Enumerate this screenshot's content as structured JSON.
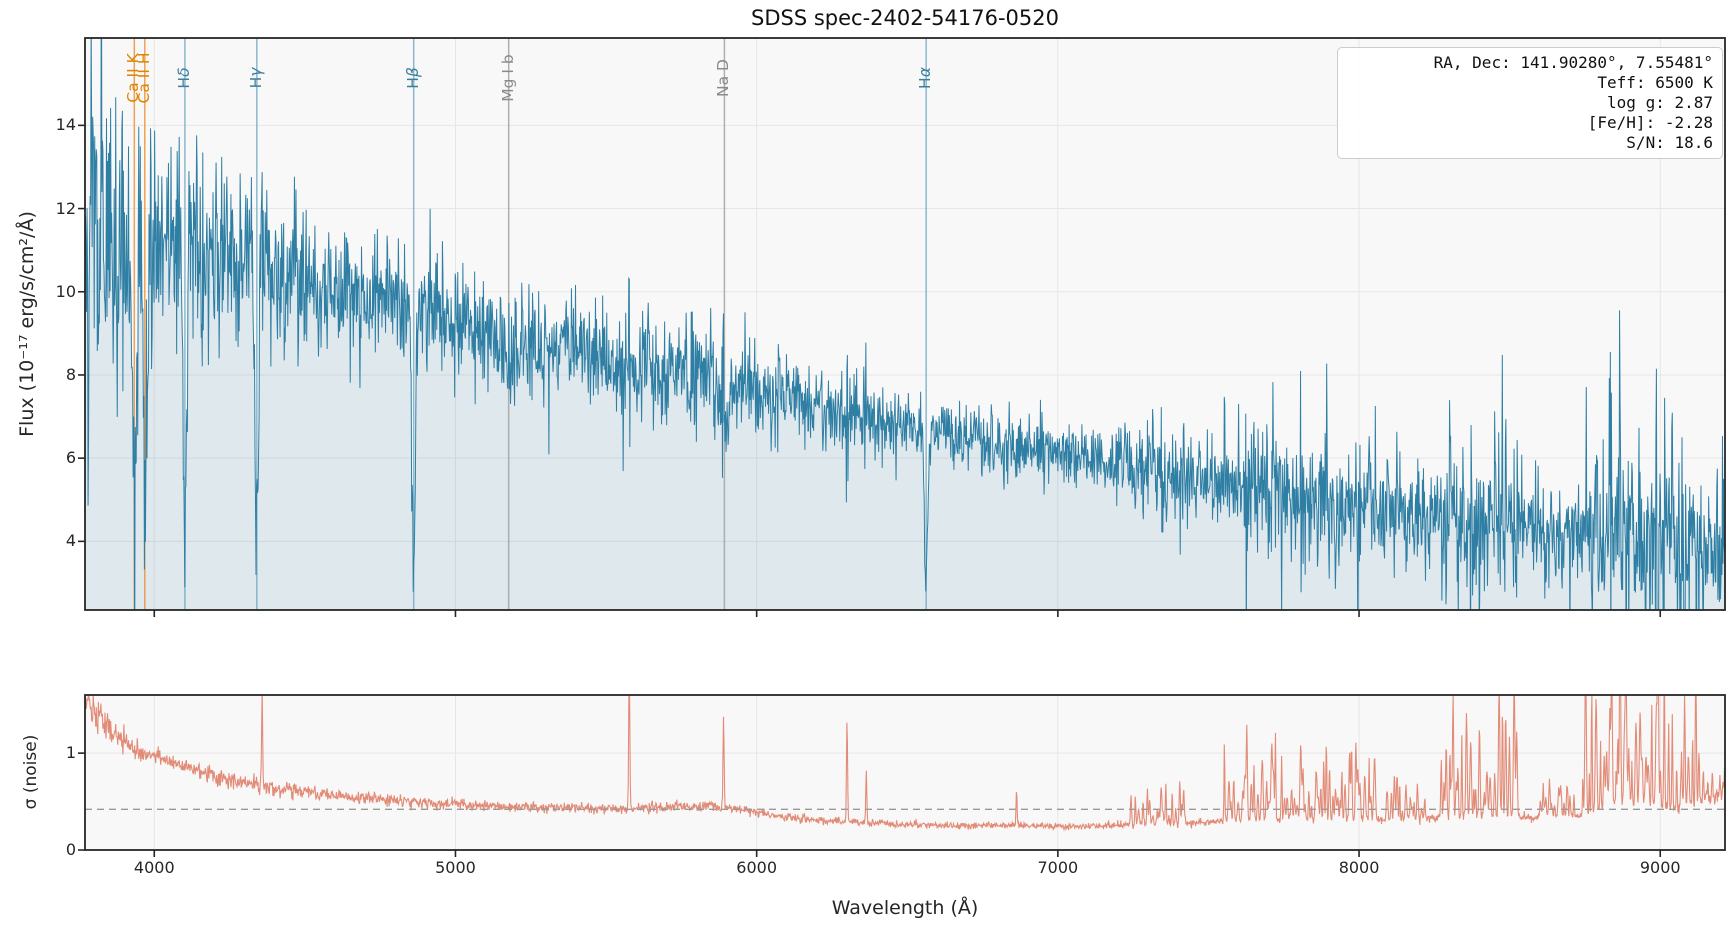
{
  "title": "SDSS spec-2402-54176-0520",
  "info_box": {
    "lines": [
      "RA, Dec: 141.90280°, 7.55481°",
      "Teff: 6500 K",
      "log g: 2.87",
      "[Fe/H]: -2.28",
      "S/N: 18.6"
    ]
  },
  "chart_data": {
    "type": "line",
    "title": "SDSS spec-2402-54176-0520",
    "xlabel": "Wavelength (Å)",
    "x_range": [
      3770,
      9215
    ],
    "x_ticks": [
      4000,
      5000,
      6000,
      7000,
      8000,
      9000
    ],
    "grid": true,
    "flux_panel": {
      "ylabel": "Flux (10⁻¹⁷ erg/s/cm²/Å)",
      "y_range": [
        2.35,
        16.1
      ],
      "y_ticks": [
        4,
        6,
        8,
        10,
        12,
        14
      ],
      "continuum": [
        [
          3770,
          12.0
        ],
        [
          3830,
          11.5
        ],
        [
          3900,
          11.2
        ],
        [
          3970,
          11.3
        ],
        [
          4050,
          11.4
        ],
        [
          4150,
          11.0
        ],
        [
          4250,
          10.7
        ],
        [
          4350,
          10.5
        ],
        [
          4450,
          10.25
        ],
        [
          4550,
          10.05
        ],
        [
          4650,
          9.9
        ],
        [
          4750,
          9.75
        ],
        [
          4850,
          9.6
        ],
        [
          4950,
          9.4
        ],
        [
          5050,
          9.2
        ],
        [
          5150,
          9.0
        ],
        [
          5250,
          8.85
        ],
        [
          5350,
          8.7
        ],
        [
          5450,
          8.55
        ],
        [
          5550,
          8.4
        ],
        [
          5650,
          8.2
        ],
        [
          5750,
          8.05
        ],
        [
          5850,
          7.9
        ],
        [
          5950,
          7.7
        ],
        [
          6050,
          7.5
        ],
        [
          6150,
          7.35
        ],
        [
          6250,
          7.2
        ],
        [
          6350,
          7.05
        ],
        [
          6450,
          6.9
        ],
        [
          6550,
          6.75
        ],
        [
          6650,
          6.6
        ],
        [
          6750,
          6.45
        ],
        [
          6850,
          6.3
        ],
        [
          6950,
          6.18
        ],
        [
          7050,
          6.05
        ],
        [
          7150,
          5.9
        ],
        [
          7250,
          5.78
        ],
        [
          7350,
          5.65
        ],
        [
          7450,
          5.52
        ],
        [
          7550,
          5.4
        ],
        [
          7650,
          5.28
        ],
        [
          7750,
          5.16
        ],
        [
          7850,
          5.05
        ],
        [
          7950,
          4.95
        ],
        [
          8050,
          4.85
        ],
        [
          8150,
          4.72
        ],
        [
          8250,
          4.6
        ],
        [
          8350,
          4.5
        ],
        [
          8450,
          4.4
        ],
        [
          8550,
          4.3
        ],
        [
          8650,
          4.2
        ],
        [
          8750,
          4.12
        ],
        [
          8850,
          4.05
        ],
        [
          8950,
          3.95
        ],
        [
          9050,
          3.85
        ],
        [
          9150,
          3.75
        ],
        [
          9215,
          3.7
        ]
      ],
      "absorption_lines": [
        {
          "wavelength": 3933.7,
          "depth": 0.66,
          "width": 6
        },
        {
          "wavelength": 3968.5,
          "depth": 0.6,
          "width": 6
        },
        {
          "wavelength": 4101.7,
          "depth": 0.66,
          "width": 5.5
        },
        {
          "wavelength": 4340.5,
          "depth": 0.68,
          "width": 5.5
        },
        {
          "wavelength": 4861.3,
          "depth": 0.64,
          "width": 5.5
        },
        {
          "wavelength": 5176.7,
          "depth": 0.09,
          "width": 18
        },
        {
          "wavelength": 5892.9,
          "depth": 0.18,
          "width": 10
        },
        {
          "wavelength": 6562.8,
          "depth": 0.58,
          "width": 5.5
        }
      ],
      "sky_emission_spikes": [
        [
          4358,
          0.9
        ],
        [
          5577,
          2.3
        ],
        [
          5890,
          1.1
        ],
        [
          6300,
          1.25
        ],
        [
          7715,
          1.7
        ],
        [
          8345,
          1.4
        ],
        [
          8833,
          3.5
        ],
        [
          9040,
          2.6
        ]
      ],
      "noise_scatter_factor": 1.5
    },
    "noise_panel": {
      "ylabel": "σ (noise)",
      "y_range": [
        0,
        1.6
      ],
      "y_ticks": [
        0,
        1
      ],
      "median_noise_level": 0.42,
      "base": [
        [
          3770,
          1.55
        ],
        [
          3820,
          1.35
        ],
        [
          3870,
          1.2
        ],
        [
          3930,
          1.05
        ],
        [
          4000,
          0.97
        ],
        [
          4080,
          0.88
        ],
        [
          4160,
          0.8
        ],
        [
          4250,
          0.72
        ],
        [
          4350,
          0.66
        ],
        [
          4450,
          0.62
        ],
        [
          4550,
          0.58
        ],
        [
          4650,
          0.55
        ],
        [
          4750,
          0.53
        ],
        [
          4850,
          0.5
        ],
        [
          4950,
          0.48
        ],
        [
          5050,
          0.47
        ],
        [
          5150,
          0.45
        ],
        [
          5250,
          0.44
        ],
        [
          5350,
          0.44
        ],
        [
          5450,
          0.43
        ],
        [
          5550,
          0.43
        ],
        [
          5650,
          0.44
        ],
        [
          5750,
          0.44
        ],
        [
          5850,
          0.46
        ],
        [
          5950,
          0.42
        ],
        [
          6050,
          0.36
        ],
        [
          6150,
          0.32
        ],
        [
          6250,
          0.3
        ],
        [
          6350,
          0.29
        ],
        [
          6450,
          0.27
        ],
        [
          6550,
          0.26
        ],
        [
          6650,
          0.25
        ],
        [
          6750,
          0.25
        ],
        [
          6850,
          0.26
        ],
        [
          6950,
          0.25
        ],
        [
          7050,
          0.24
        ],
        [
          7150,
          0.25
        ],
        [
          7250,
          0.27
        ],
        [
          7350,
          0.28
        ],
        [
          7450,
          0.28
        ],
        [
          7550,
          0.3
        ],
        [
          7650,
          0.31
        ],
        [
          7750,
          0.32
        ],
        [
          7850,
          0.32
        ],
        [
          7950,
          0.32
        ],
        [
          8050,
          0.31
        ],
        [
          8150,
          0.31
        ],
        [
          8250,
          0.33
        ],
        [
          8350,
          0.36
        ],
        [
          8450,
          0.36
        ],
        [
          8550,
          0.33
        ],
        [
          8650,
          0.33
        ],
        [
          8750,
          0.36
        ],
        [
          8850,
          0.5
        ],
        [
          8950,
          0.48
        ],
        [
          9050,
          0.45
        ],
        [
          9150,
          0.48
        ],
        [
          9215,
          0.55
        ]
      ],
      "spikes": [
        [
          4358,
          0.95
        ],
        [
          5577,
          1.5
        ],
        [
          5890,
          0.9
        ],
        [
          6300,
          1.1
        ],
        [
          6364,
          0.5
        ],
        [
          6863,
          0.35
        ]
      ],
      "sky_bands": [
        [
          7240,
          7430,
          0.5
        ],
        [
          7550,
          7730,
          0.95
        ],
        [
          7740,
          8060,
          0.9
        ],
        [
          8090,
          8220,
          0.5
        ],
        [
          8270,
          8530,
          1.45
        ],
        [
          8600,
          8720,
          0.42
        ],
        [
          8740,
          9130,
          1.9
        ],
        [
          9140,
          9215,
          0.4
        ]
      ]
    },
    "spectral_lines": [
      {
        "label": "Ca II K",
        "wavelength": 3933.7,
        "color_key": "orange",
        "greek": false
      },
      {
        "label": "Ca II H",
        "wavelength": 3968.5,
        "color_key": "orange",
        "greek": false
      },
      {
        "label": "Hδ",
        "wavelength": 4101.7,
        "color_key": "blue",
        "greek": true
      },
      {
        "label": "Hγ",
        "wavelength": 4340.5,
        "color_key": "blue",
        "greek": true
      },
      {
        "label": "Hβ",
        "wavelength": 4861.3,
        "color_key": "blue",
        "greek": true
      },
      {
        "label": "Mg I b",
        "wavelength": 5176.7,
        "color_key": "gray",
        "greek": false
      },
      {
        "label": "Na D",
        "wavelength": 5892.9,
        "color_key": "gray",
        "greek": false
      },
      {
        "label": "Hα",
        "wavelength": 6562.8,
        "color_key": "blue",
        "greek": true
      }
    ],
    "colors": {
      "flux_line": "#2f7fa4",
      "flux_fill": "rgba(47,127,164,0.13)",
      "noise_line": "#e28b77",
      "median_dash": "#999999",
      "marker_orange": "#ed8b30",
      "marker_orange_label": "#dd8500",
      "marker_blue": "#6fa8c2",
      "marker_blue_label": "#3a7f9e",
      "marker_gray": "#9e9e9e",
      "marker_gray_label": "#8a8a8a",
      "axes_bg": "#f8f8f8",
      "grid": "#e6e6e6",
      "spine": "#262626",
      "text": "#262626"
    },
    "seed": 42
  }
}
